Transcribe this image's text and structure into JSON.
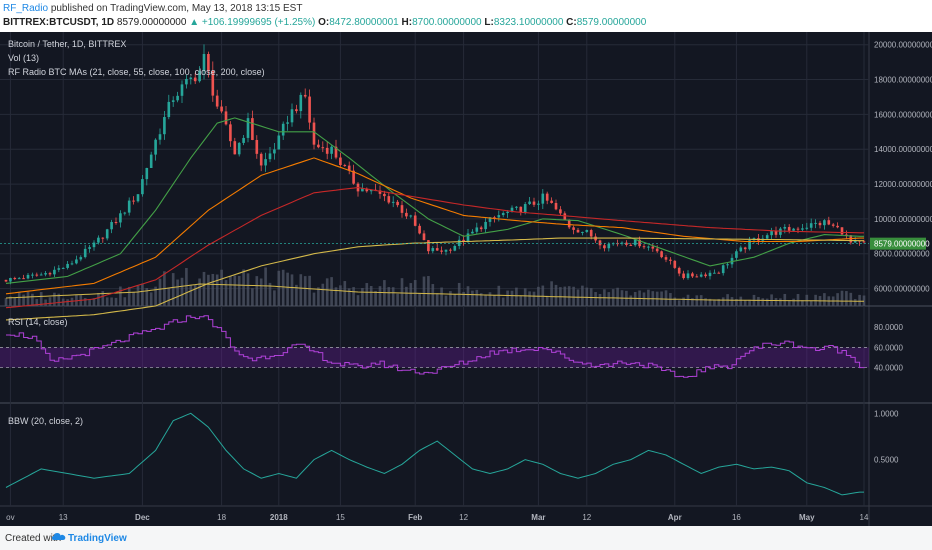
{
  "header": {
    "author": "RF_Radio",
    "published": "published on TradingView.com, May 13, 2018 13:15 EST",
    "symbol": "BITTREX:BTCUSDT, 1D",
    "last": "8579.00000000",
    "change": "▲ +106.19999695 (+1.25%)",
    "o_label": "O:",
    "o_value": "8472.80000001",
    "h_label": "H:",
    "h_value": "8700.00000000",
    "l_label": "L:",
    "l_value": "8323.10000000",
    "c_label": "C:",
    "c_value": "8579.00000000"
  },
  "legend": {
    "title": "Bitcoin / Tether, 1D, BITTREX",
    "vol": "Vol (13)",
    "mas": "RF Radio BTC MAs (21, close, 55, close, 100, close, 200, close)",
    "rsi": "RSI (14, close)",
    "bbw": "BBW (20, close, 2)"
  },
  "footer": {
    "created": "Created with",
    "brand": "TradingView"
  },
  "colors": {
    "bg": "#131722",
    "grid": "#262b38",
    "up": "#26a69a",
    "down": "#ef5350",
    "ma21": "#43a047",
    "ma55": "#f57c00",
    "ma100": "#c62828",
    "ma200": "#d4b94a",
    "rsi": "#b041d8",
    "rsi_band": "#6a1b9a",
    "bbw": "#26a69a",
    "axis_text": "#b2b5be",
    "price_tag": "#388e3c"
  },
  "chart_data": [
    {
      "type": "candlestick",
      "title": "Bitcoin / Tether, 1D, BITTREX",
      "ylim": [
        5000,
        20500
      ],
      "y_ticks": [
        "20000.00000000",
        "18000.00000000",
        "16000.00000000",
        "14000.00000000",
        "12000.00000000",
        "10000.00000000",
        "8000.00000000",
        "6000.00000000"
      ],
      "y_tick_values": [
        20000,
        18000,
        16000,
        14000,
        12000,
        10000,
        8000,
        6000
      ],
      "last_price_label": "8579.00000000",
      "last_price": 8579,
      "x_ticks": [
        "ov",
        "13",
        "Dec",
        "18",
        "2018",
        "15",
        "Feb",
        "12",
        "Mar",
        "12",
        "Apr",
        "16",
        "May",
        "14"
      ],
      "x_tick_index": [
        1,
        13,
        31,
        49,
        62,
        76,
        93,
        104,
        121,
        132,
        152,
        166,
        182,
        195
      ],
      "close_anchors": [
        [
          0,
          6500
        ],
        [
          8,
          6800
        ],
        [
          14,
          7300
        ],
        [
          20,
          8500
        ],
        [
          26,
          10200
        ],
        [
          30,
          11500
        ],
        [
          34,
          14500
        ],
        [
          38,
          17000
        ],
        [
          44,
          18500
        ],
        [
          45,
          19200
        ],
        [
          48,
          16500
        ],
        [
          52,
          13800
        ],
        [
          55,
          15500
        ],
        [
          58,
          13000
        ],
        [
          62,
          14500
        ],
        [
          64,
          15800
        ],
        [
          66,
          16500
        ],
        [
          68,
          17000
        ],
        [
          70,
          14200
        ],
        [
          74,
          14000
        ],
        [
          78,
          12500
        ],
        [
          80,
          11800
        ],
        [
          84,
          11500
        ],
        [
          88,
          11000
        ],
        [
          92,
          10000
        ],
        [
          96,
          8200
        ],
        [
          100,
          8200
        ],
        [
          104,
          8800
        ],
        [
          108,
          9600
        ],
        [
          112,
          10200
        ],
        [
          116,
          10500
        ],
        [
          120,
          10900
        ],
        [
          122,
          11200
        ],
        [
          124,
          10800
        ],
        [
          128,
          9600
        ],
        [
          132,
          9200
        ],
        [
          136,
          8500
        ],
        [
          140,
          8700
        ],
        [
          144,
          8600
        ],
        [
          148,
          8200
        ],
        [
          152,
          7200
        ],
        [
          154,
          6700
        ],
        [
          158,
          6800
        ],
        [
          162,
          7000
        ],
        [
          166,
          8000
        ],
        [
          170,
          8800
        ],
        [
          174,
          9200
        ],
        [
          178,
          9400
        ],
        [
          182,
          9600
        ],
        [
          186,
          9800
        ],
        [
          190,
          9300
        ],
        [
          192,
          8600
        ],
        [
          194,
          8579
        ]
      ],
      "ma_series": [
        {
          "name": "MA 21",
          "anchors": [
            [
              0,
              6300
            ],
            [
              14,
              6700
            ],
            [
              26,
              8000
            ],
            [
              34,
              10500
            ],
            [
              42,
              13500
            ],
            [
              48,
              15500
            ],
            [
              52,
              15800
            ],
            [
              62,
              15000
            ],
            [
              70,
              15000
            ],
            [
              78,
              13500
            ],
            [
              88,
              11500
            ],
            [
              96,
              10000
            ],
            [
              104,
              9000
            ],
            [
              114,
              9400
            ],
            [
              122,
              10000
            ],
            [
              130,
              9900
            ],
            [
              140,
              9100
            ],
            [
              150,
              8200
            ],
            [
              160,
              7300
            ],
            [
              170,
              7800
            ],
            [
              178,
              8600
            ],
            [
              186,
              9100
            ],
            [
              194,
              9000
            ]
          ]
        },
        {
          "name": "MA 55",
          "anchors": [
            [
              0,
              5700
            ],
            [
              20,
              6300
            ],
            [
              34,
              7800
            ],
            [
              46,
              10500
            ],
            [
              58,
              12500
            ],
            [
              70,
              13500
            ],
            [
              80,
              12600
            ],
            [
              92,
              11200
            ],
            [
              104,
              10200
            ],
            [
              116,
              9900
            ],
            [
              126,
              9700
            ],
            [
              140,
              9500
            ],
            [
              154,
              9000
            ],
            [
              168,
              8700
            ],
            [
              180,
              8700
            ],
            [
              194,
              8900
            ]
          ]
        },
        {
          "name": "MA 100",
          "anchors": [
            [
              0,
              4900
            ],
            [
              20,
              5400
            ],
            [
              34,
              6500
            ],
            [
              46,
              8500
            ],
            [
              58,
              10200
            ],
            [
              70,
              11500
            ],
            [
              80,
              11800
            ],
            [
              92,
              11300
            ],
            [
              104,
              10800
            ],
            [
              116,
              10400
            ],
            [
              126,
              10200
            ],
            [
              140,
              9900
            ],
            [
              160,
              9500
            ],
            [
              176,
              9300
            ],
            [
              194,
              9200
            ]
          ]
        },
        {
          "name": "MA 200",
          "anchors": [
            [
              0,
              4200
            ],
            [
              20,
              4500
            ],
            [
              34,
              5000
            ],
            [
              46,
              6300
            ],
            [
              58,
              7300
            ],
            [
              70,
              8000
            ],
            [
              80,
              8400
            ],
            [
              92,
              8600
            ],
            [
              104,
              8700
            ],
            [
              116,
              8800
            ],
            [
              126,
              8900
            ],
            [
              140,
              8900
            ],
            [
              160,
              8850
            ],
            [
              180,
              8800
            ],
            [
              194,
              8750
            ]
          ]
        }
      ]
    },
    {
      "type": "bar",
      "name": "Vol (13)",
      "anchors": [
        [
          0,
          0.25
        ],
        [
          24,
          0.3
        ],
        [
          32,
          0.45
        ],
        [
          40,
          0.8
        ],
        [
          46,
          0.95
        ],
        [
          52,
          0.7
        ],
        [
          62,
          0.65
        ],
        [
          68,
          0.6
        ],
        [
          76,
          0.5
        ],
        [
          84,
          0.45
        ],
        [
          94,
          0.55
        ],
        [
          100,
          0.45
        ],
        [
          110,
          0.35
        ],
        [
          124,
          0.45
        ],
        [
          132,
          0.35
        ],
        [
          146,
          0.3
        ],
        [
          160,
          0.2
        ],
        [
          176,
          0.22
        ],
        [
          194,
          0.3
        ]
      ],
      "ma_anchors": [
        [
          0,
          0.2
        ],
        [
          30,
          0.35
        ],
        [
          44,
          0.55
        ],
        [
          60,
          0.5
        ],
        [
          80,
          0.35
        ],
        [
          100,
          0.3
        ],
        [
          130,
          0.22
        ],
        [
          160,
          0.15
        ],
        [
          194,
          0.12
        ]
      ]
    },
    {
      "type": "line",
      "name": "RSI (14, close)",
      "ylim": [
        5,
        100
      ],
      "y_ticks": [
        "80.0000",
        "60.0000",
        "40.0000"
      ],
      "y_tick_values": [
        80,
        60,
        40
      ],
      "band": [
        40,
        60
      ],
      "anchors": [
        [
          0,
          75
        ],
        [
          6,
          70
        ],
        [
          10,
          45
        ],
        [
          16,
          52
        ],
        [
          22,
          60
        ],
        [
          28,
          70
        ],
        [
          34,
          78
        ],
        [
          40,
          88
        ],
        [
          44,
          92
        ],
        [
          48,
          80
        ],
        [
          52,
          55
        ],
        [
          56,
          48
        ],
        [
          62,
          55
        ],
        [
          66,
          62
        ],
        [
          70,
          55
        ],
        [
          74,
          45
        ],
        [
          80,
          40
        ],
        [
          84,
          45
        ],
        [
          90,
          38
        ],
        [
          96,
          35
        ],
        [
          100,
          40
        ],
        [
          106,
          48
        ],
        [
          110,
          55
        ],
        [
          116,
          58
        ],
        [
          122,
          60
        ],
        [
          126,
          52
        ],
        [
          130,
          45
        ],
        [
          136,
          42
        ],
        [
          140,
          46
        ],
        [
          146,
          42
        ],
        [
          150,
          35
        ],
        [
          154,
          30
        ],
        [
          158,
          38
        ],
        [
          164,
          42
        ],
        [
          168,
          55
        ],
        [
          172,
          62
        ],
        [
          176,
          65
        ],
        [
          180,
          62
        ],
        [
          184,
          58
        ],
        [
          188,
          60
        ],
        [
          192,
          50
        ],
        [
          194,
          43
        ]
      ]
    },
    {
      "type": "line",
      "name": "BBW (20, close, 2)",
      "ylim": [
        0,
        1.1
      ],
      "y_ticks": [
        "1.0000",
        "0.5000"
      ],
      "y_tick_values": [
        1.0,
        0.5
      ],
      "anchors": [
        [
          0,
          0.2
        ],
        [
          8,
          0.4
        ],
        [
          14,
          0.35
        ],
        [
          20,
          0.3
        ],
        [
          28,
          0.35
        ],
        [
          34,
          0.6
        ],
        [
          38,
          0.92
        ],
        [
          42,
          1.0
        ],
        [
          46,
          0.85
        ],
        [
          50,
          0.6
        ],
        [
          54,
          0.4
        ],
        [
          58,
          0.3
        ],
        [
          62,
          0.35
        ],
        [
          66,
          0.3
        ],
        [
          70,
          0.5
        ],
        [
          74,
          0.6
        ],
        [
          78,
          0.5
        ],
        [
          82,
          0.42
        ],
        [
          86,
          0.35
        ],
        [
          90,
          0.45
        ],
        [
          94,
          0.6
        ],
        [
          98,
          0.7
        ],
        [
          102,
          0.55
        ],
        [
          106,
          0.4
        ],
        [
          110,
          0.35
        ],
        [
          114,
          0.4
        ],
        [
          118,
          0.5
        ],
        [
          122,
          0.45
        ],
        [
          126,
          0.35
        ],
        [
          130,
          0.3
        ],
        [
          134,
          0.35
        ],
        [
          138,
          0.45
        ],
        [
          142,
          0.5
        ],
        [
          146,
          0.6
        ],
        [
          150,
          0.55
        ],
        [
          154,
          0.45
        ],
        [
          158,
          0.35
        ],
        [
          162,
          0.42
        ],
        [
          166,
          0.45
        ],
        [
          170,
          0.4
        ],
        [
          174,
          0.42
        ],
        [
          178,
          0.38
        ],
        [
          182,
          0.25
        ],
        [
          186,
          0.2
        ],
        [
          190,
          0.12
        ],
        [
          194,
          0.15
        ]
      ]
    }
  ]
}
